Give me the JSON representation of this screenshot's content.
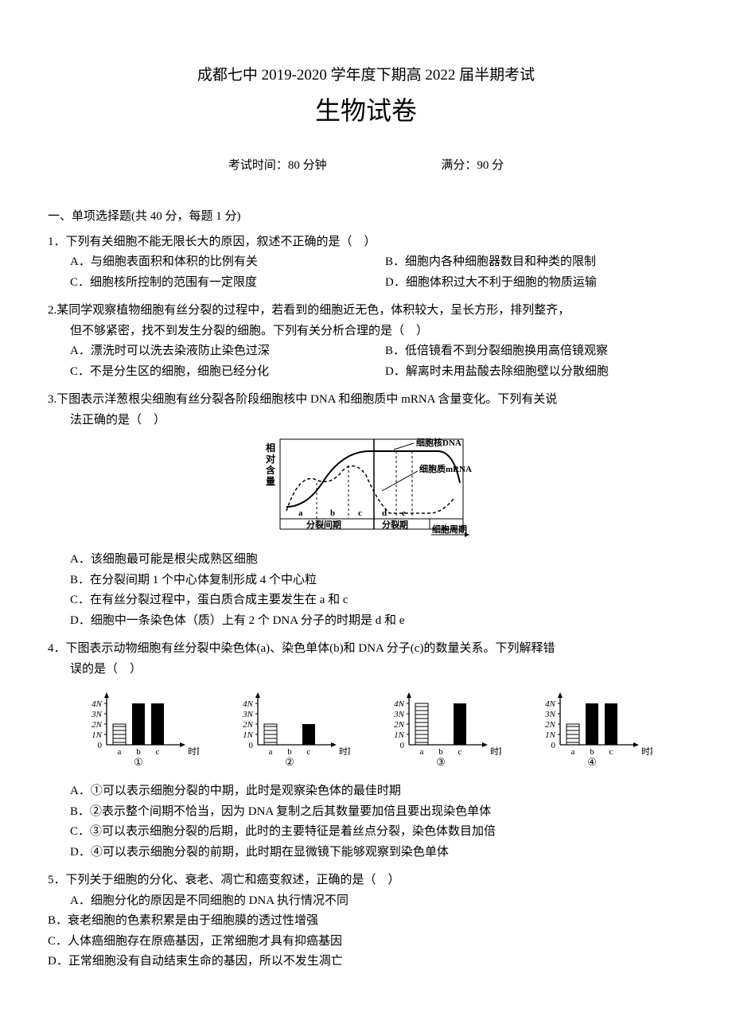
{
  "header": {
    "title_line": "成都七中 2019-2020 学年度下期高 2022 届半期考试",
    "main_title": "生物试卷",
    "exam_time": "考试时间：80 分钟",
    "full_score": "满分：90 分"
  },
  "section": {
    "mcq_header": "一、单项选择题(共 40 分，每题 1 分)"
  },
  "q1": {
    "stem": "1．下列有关细胞不能无限长大的原因，叙述不正确的是（　）",
    "A": "A．与细胞表面积和体积的比例有关",
    "B": "B．细胞内各种细胞器数目和种类的限制",
    "C": "C．细胞核所控制的范围有一定限度",
    "D": "D．细胞体积过大不利于细胞的物质运输"
  },
  "q2": {
    "stem": "2.某同学观察植物细胞有丝分裂的过程中，若看到的细胞近无色，体积较大，呈长方形，排列整齐，",
    "cont": "但不够紧密，找不到发生分裂的细胞。下列有关分析合理的是（　）",
    "A": "A．漂洗时可以洗去染液防止染色过深",
    "B": "B．低倍镜看不到分裂细胞换用高倍镜观察",
    "C": "C．不是分生区的细胞，细胞已经分化",
    "D": "D．解离时未用盐酸去除细胞壁以分散细胞"
  },
  "q3": {
    "stem": "3.下图表示洋葱根尖细胞有丝分裂各阶段细胞核中 DNA 和细胞质中 mRNA 含量变化。下列有关说",
    "cont": "法正确的是（　）",
    "A": "A．该细胞最可能是根尖成熟区细胞",
    "B": "B．在分裂间期 1 个中心体复制形成 4 个中心粒",
    "C": "C．在有丝分裂过程中，蛋白质合成主要发生在 a 和 c",
    "D": "D．细胞中一条染色体（质）上有 2 个 DNA 分子的时期是 d 和 e"
  },
  "q4": {
    "stem": "4．下图表示动物细胞有丝分裂中染色体(a)、染色单体(b)和 DNA 分子(c)的数量关系。下列解释错",
    "cont": "误的是（　）",
    "A": "A．①可以表示细胞分裂的中期，此时是观察染色体的最佳时期",
    "B": "B．②表示整个间期不恰当，因为 DNA 复制之后其数量要加倍且要出现染色单体",
    "C": "C．③可以表示细胞分裂的后期，此时的主要特征是着丝点分裂，染色体数目加倍",
    "D": "D．④可以表示细胞分裂的前期，此时期在显微镜下能够观察到染色单体"
  },
  "q5": {
    "stem": "5．下列关于细胞的分化、衰老、凋亡和癌变叙述，正确的是（　）",
    "A": "A．细胞分化的原因是不同细胞的 DNA 执行情况不同",
    "B": "B．衰老细胞的色素积累是由于细胞膜的透过性增强",
    "C": "C．人体癌细胞存在原癌基因，正常细胞才具有抑癌基因",
    "D": "D．正常细胞没有自动结束生命的基因，所以不发生凋亡"
  },
  "fig3": {
    "ylabel1": "相",
    "ylabel2": "对",
    "ylabel3": "含",
    "ylabel4": "量",
    "dna_label": "细胞核DNA",
    "mrna_label": "细胞质mRNA",
    "x_a": "a",
    "x_b": "b",
    "x_c": "c",
    "x_d": "d",
    "x_e": "e",
    "interphase": "分裂间期",
    "mitosis": "分裂期",
    "cycle": "细胞周期",
    "colors": {
      "border": "#000000",
      "line": "#000000",
      "bg": "#ffffff"
    }
  },
  "fig4": {
    "y_ticks": [
      "4N",
      "3N",
      "2N",
      "1N",
      "0"
    ],
    "x_ticks": [
      "a",
      "b",
      "c"
    ],
    "xlabel": "时期",
    "labels": [
      "①",
      "②",
      "③",
      "④"
    ],
    "hatched_fill": "#ffffff",
    "solid_fill": "#000000",
    "axis_color": "#000000",
    "charts": [
      {
        "a": 2,
        "b": 4,
        "c": 4,
        "a_hatched": true
      },
      {
        "a": 2,
        "b": 0,
        "c": 2,
        "a_hatched": true
      },
      {
        "a": 4,
        "b": 0,
        "c": 4,
        "a_hatched": true
      },
      {
        "a": 2,
        "b": 4,
        "c": 4,
        "a_hatched": true
      }
    ]
  }
}
